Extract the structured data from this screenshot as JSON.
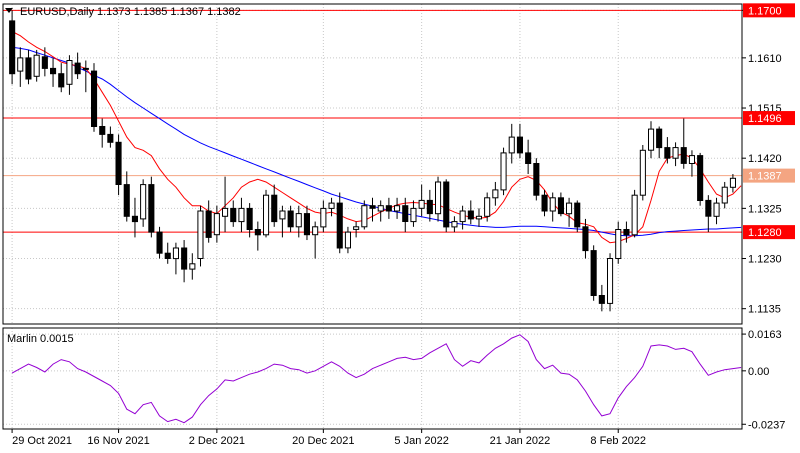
{
  "chart_data": [
    {
      "type": "candlestick",
      "title": "EURUSD,Daily  1.1373 1.1385 1.1367 1.1382",
      "ylim": [
        1.1106,
        1.1712
      ],
      "grid": true,
      "price_ticks": [
        "1.1700",
        "1.1610",
        "1.1515",
        "1.1420",
        "1.1325",
        "1.1230",
        "1.1135"
      ],
      "levels": [
        {
          "value": 1.17,
          "label": "1.1700",
          "style": "solid",
          "color": "#ff0000"
        },
        {
          "value": 1.1496,
          "label": "1.1496",
          "style": "solid",
          "color": "#ff0000"
        },
        {
          "value": 1.1387,
          "label": "1.1387",
          "style": "solid",
          "color": "#f4a582"
        },
        {
          "value": 1.128,
          "label": "1.1280",
          "style": "solid",
          "color": "#ff0000"
        }
      ],
      "colors": {
        "up": "#ffffff",
        "down": "#000000",
        "wick": "#000000",
        "fast_ma": "#ff0000",
        "slow_ma": "#0000ff",
        "level_label_bg": "#ff0000",
        "level_label_text": "#ffffff"
      },
      "candles": [
        [
          1.168,
          1.17,
          1.156,
          1.158
        ],
        [
          1.1585,
          1.163,
          1.1555,
          1.161
        ],
        [
          1.161,
          1.1625,
          1.156,
          1.157
        ],
        [
          1.1575,
          1.1625,
          1.1565,
          1.1615
        ],
        [
          1.1612,
          1.163,
          1.1575,
          1.159
        ],
        [
          1.159,
          1.161,
          1.1555,
          1.158
        ],
        [
          1.158,
          1.16,
          1.1545,
          1.1555
        ],
        [
          1.156,
          1.1615,
          1.154,
          1.1605
        ],
        [
          1.16,
          1.162,
          1.157,
          1.158
        ],
        [
          1.159,
          1.1605,
          1.1545,
          1.159
        ],
        [
          1.1585,
          1.16,
          1.147,
          1.148
        ],
        [
          1.148,
          1.1495,
          1.144,
          1.1465
        ],
        [
          1.1465,
          1.148,
          1.144,
          1.145
        ],
        [
          1.145,
          1.1465,
          1.135,
          1.137
        ],
        [
          1.137,
          1.1395,
          1.13,
          1.131
        ],
        [
          1.131,
          1.1345,
          1.127,
          1.13
        ],
        [
          1.1305,
          1.138,
          1.129,
          1.137
        ],
        [
          1.137,
          1.1385,
          1.127,
          1.128
        ],
        [
          1.128,
          1.129,
          1.123,
          1.124
        ],
        [
          1.124,
          1.126,
          1.122,
          1.123
        ],
        [
          1.123,
          1.126,
          1.12,
          1.125
        ],
        [
          1.125,
          1.1265,
          1.1185,
          1.121
        ],
        [
          1.121,
          1.124,
          1.119,
          1.122
        ],
        [
          1.123,
          1.133,
          1.1215,
          1.132
        ],
        [
          1.132,
          1.134,
          1.126,
          1.127
        ],
        [
          1.1275,
          1.133,
          1.126,
          1.1315
        ],
        [
          1.131,
          1.1385,
          1.128,
          1.1325
        ],
        [
          1.1325,
          1.134,
          1.129,
          1.13
        ],
        [
          1.13,
          1.1345,
          1.128,
          1.1325
        ],
        [
          1.1325,
          1.1335,
          1.127,
          1.1285
        ],
        [
          1.1285,
          1.13,
          1.1245,
          1.1275
        ],
        [
          1.1275,
          1.136,
          1.127,
          1.135
        ],
        [
          1.135,
          1.137,
          1.129,
          1.13
        ],
        [
          1.1305,
          1.133,
          1.127,
          1.132
        ],
        [
          1.132,
          1.133,
          1.128,
          1.129
        ],
        [
          1.129,
          1.133,
          1.127,
          1.1315
        ],
        [
          1.1315,
          1.133,
          1.1265,
          1.1275
        ],
        [
          1.1275,
          1.13,
          1.123,
          1.129
        ],
        [
          1.129,
          1.134,
          1.128,
          1.1325
        ],
        [
          1.1325,
          1.1345,
          1.131,
          1.1335
        ],
        [
          1.1335,
          1.1355,
          1.124,
          1.125
        ],
        [
          1.125,
          1.129,
          1.124,
          1.128
        ],
        [
          1.1285,
          1.13,
          1.127,
          1.129
        ],
        [
          1.129,
          1.134,
          1.1285,
          1.133
        ],
        [
          1.133,
          1.1345,
          1.13,
          1.1325
        ],
        [
          1.132,
          1.134,
          1.13,
          1.133
        ],
        [
          1.133,
          1.1345,
          1.1305,
          1.132
        ],
        [
          1.132,
          1.1345,
          1.1305,
          1.133
        ],
        [
          1.133,
          1.1345,
          1.128,
          1.13
        ],
        [
          1.13,
          1.134,
          1.129,
          1.1325
        ],
        [
          1.1325,
          1.137,
          1.131,
          1.134
        ],
        [
          1.134,
          1.136,
          1.13,
          1.1315
        ],
        [
          1.1315,
          1.1385,
          1.13,
          1.1375
        ],
        [
          1.1375,
          1.138,
          1.128,
          1.129
        ],
        [
          1.129,
          1.131,
          1.128,
          1.13
        ],
        [
          1.13,
          1.133,
          1.1285,
          1.132
        ],
        [
          1.132,
          1.134,
          1.1295,
          1.1305
        ],
        [
          1.1305,
          1.1325,
          1.129,
          1.131
        ],
        [
          1.131,
          1.1355,
          1.13,
          1.1345
        ],
        [
          1.1345,
          1.1375,
          1.133,
          1.136
        ],
        [
          1.136,
          1.144,
          1.135,
          1.143
        ],
        [
          1.143,
          1.1485,
          1.141,
          1.146
        ],
        [
          1.146,
          1.1485,
          1.142,
          1.143
        ],
        [
          1.143,
          1.1455,
          1.139,
          1.141
        ],
        [
          1.141,
          1.142,
          1.134,
          1.135
        ],
        [
          1.135,
          1.136,
          1.131,
          1.132
        ],
        [
          1.132,
          1.1355,
          1.13,
          1.1345
        ],
        [
          1.1345,
          1.1355,
          1.131,
          1.1315
        ],
        [
          1.1315,
          1.1345,
          1.129,
          1.1335
        ],
        [
          1.1335,
          1.134,
          1.128,
          1.129
        ],
        [
          1.129,
          1.1305,
          1.123,
          1.1245
        ],
        [
          1.1245,
          1.1255,
          1.115,
          1.116
        ],
        [
          1.116,
          1.118,
          1.113,
          1.1145
        ],
        [
          1.1145,
          1.124,
          1.113,
          1.123
        ],
        [
          1.123,
          1.13,
          1.122,
          1.1285
        ],
        [
          1.1285,
          1.13,
          1.126,
          1.1275
        ],
        [
          1.1275,
          1.136,
          1.127,
          1.135
        ],
        [
          1.135,
          1.1445,
          1.134,
          1.1435
        ],
        [
          1.1435,
          1.149,
          1.142,
          1.1475
        ],
        [
          1.1475,
          1.148,
          1.142,
          1.144
        ],
        [
          1.144,
          1.146,
          1.141,
          1.142
        ],
        [
          1.142,
          1.145,
          1.1405,
          1.144
        ],
        [
          1.144,
          1.1495,
          1.14,
          1.141
        ],
        [
          1.141,
          1.1435,
          1.1385,
          1.1425
        ],
        [
          1.1425,
          1.143,
          1.133,
          1.134
        ],
        [
          1.134,
          1.135,
          1.128,
          1.131
        ],
        [
          1.131,
          1.1345,
          1.1295,
          1.1335
        ],
        [
          1.1335,
          1.1375,
          1.1325,
          1.1365
        ],
        [
          1.1365,
          1.139,
          1.1355,
          1.1382
        ]
      ],
      "fast_ma": [
        1.166,
        1.1652,
        1.164,
        1.163,
        1.1622,
        1.1612,
        1.1602,
        1.1598,
        1.1595,
        1.159,
        1.157,
        1.1545,
        1.152,
        1.149,
        1.146,
        1.144,
        1.1435,
        1.1425,
        1.14,
        1.138,
        1.1365,
        1.1345,
        1.133,
        1.133,
        1.132,
        1.1315,
        1.133,
        1.1345,
        1.1365,
        1.1375,
        1.138,
        1.1375,
        1.1365,
        1.1355,
        1.1345,
        1.1335,
        1.1325,
        1.1318,
        1.1315,
        1.1318,
        1.1312,
        1.1305,
        1.13,
        1.1302,
        1.131,
        1.1318,
        1.1325,
        1.1332,
        1.1335,
        1.1336,
        1.1335,
        1.1333,
        1.1332,
        1.1325,
        1.1318,
        1.1312,
        1.1308,
        1.1306,
        1.1308,
        1.1318,
        1.1338,
        1.1365,
        1.138,
        1.1385,
        1.1378,
        1.136,
        1.1335,
        1.1318,
        1.131,
        1.1298,
        1.1295,
        1.129,
        1.127,
        1.126,
        1.1262,
        1.1268,
        1.1275,
        1.129,
        1.134,
        1.1395,
        1.142,
        1.1425,
        1.1428,
        1.142,
        1.14,
        1.1375,
        1.1352,
        1.1345,
        1.1352,
        1.1368
      ],
      "slow_ma": [
        1.163,
        1.1628,
        1.1625,
        1.162,
        1.1615,
        1.161,
        1.1605,
        1.16,
        1.1592,
        1.1585,
        1.1577,
        1.157,
        1.156,
        1.1548,
        1.1536,
        1.1525,
        1.1515,
        1.1505,
        1.1495,
        1.1485,
        1.1475,
        1.1465,
        1.1457,
        1.1449,
        1.1442,
        1.1436,
        1.143,
        1.1424,
        1.1418,
        1.1412,
        1.1406,
        1.14,
        1.1394,
        1.1388,
        1.1382,
        1.1376,
        1.137,
        1.1364,
        1.1358,
        1.1352,
        1.1347,
        1.1342,
        1.1337,
        1.1333,
        1.1329,
        1.1325,
        1.1321,
        1.1318,
        1.1315,
        1.1312,
        1.1309,
        1.1306,
        1.1303,
        1.13,
        1.1297,
        1.1295,
        1.1293,
        1.1291,
        1.129,
        1.1289,
        1.1289,
        1.129,
        1.1291,
        1.1291,
        1.1291,
        1.129,
        1.1289,
        1.1288,
        1.1287,
        1.1286,
        1.1285,
        1.1283,
        1.128,
        1.1277,
        1.1274,
        1.1273,
        1.1273,
        1.1274,
        1.1276,
        1.1279,
        1.1281,
        1.1282,
        1.1283,
        1.1284,
        1.1285,
        1.1286,
        1.1286,
        1.1287,
        1.1288,
        1.1289
      ]
    },
    {
      "type": "line",
      "title": "Marlin 0.0015",
      "ylim": [
        -0.0258,
        0.019
      ],
      "ticks": [
        "0.0163",
        "0.00",
        "-0.0237"
      ],
      "series": [
        {
          "color": "#9400d3",
          "values": [
            -0.001,
            0.001,
            0.003,
            0.0015,
            -0.0005,
            0.003,
            0.005,
            0.004,
            0.001,
            -0.0005,
            -0.0025,
            -0.0045,
            -0.0065,
            -0.01,
            -0.017,
            -0.019,
            -0.015,
            -0.014,
            -0.02,
            -0.0225,
            -0.0215,
            -0.023,
            -0.0205,
            -0.015,
            -0.011,
            -0.008,
            -0.004,
            -0.0045,
            -0.003,
            -0.0015,
            -0.0005,
            0.001,
            0.003,
            0.0025,
            0.001,
            0.0005,
            -0.001,
            0.0,
            0.002,
            0.004,
            0.002,
            -0.001,
            -0.003,
            -0.0015,
            0.001,
            0.0025,
            0.004,
            0.0055,
            0.006,
            0.005,
            0.0055,
            0.008,
            0.01,
            0.012,
            0.005,
            0.002,
            0.0045,
            0.0035,
            0.007,
            0.01,
            0.012,
            0.0145,
            0.016,
            0.013,
            0.005,
            0.001,
            0.0025,
            -0.001,
            -0.0015,
            -0.004,
            -0.009,
            -0.015,
            -0.02,
            -0.019,
            -0.012,
            -0.007,
            -0.003,
            0.002,
            0.011,
            0.0115,
            0.011,
            0.0095,
            0.01,
            0.0085,
            0.003,
            -0.002,
            -0.0005,
            0.0005,
            0.001,
            0.0015
          ]
        }
      ]
    }
  ],
  "x_axis": {
    "labels": [
      {
        "label": "29 Oct 2021",
        "index": 0
      },
      {
        "label": "16 Nov 2021",
        "index": 13
      },
      {
        "label": "2 Dec 2021",
        "index": 25
      },
      {
        "label": "20 Dec 2021",
        "index": 38
      },
      {
        "label": "5 Jan 2022",
        "index": 50
      },
      {
        "label": "21 Jan 2022",
        "index": 62
      },
      {
        "label": "8 Feb 2022",
        "index": 74
      }
    ]
  }
}
